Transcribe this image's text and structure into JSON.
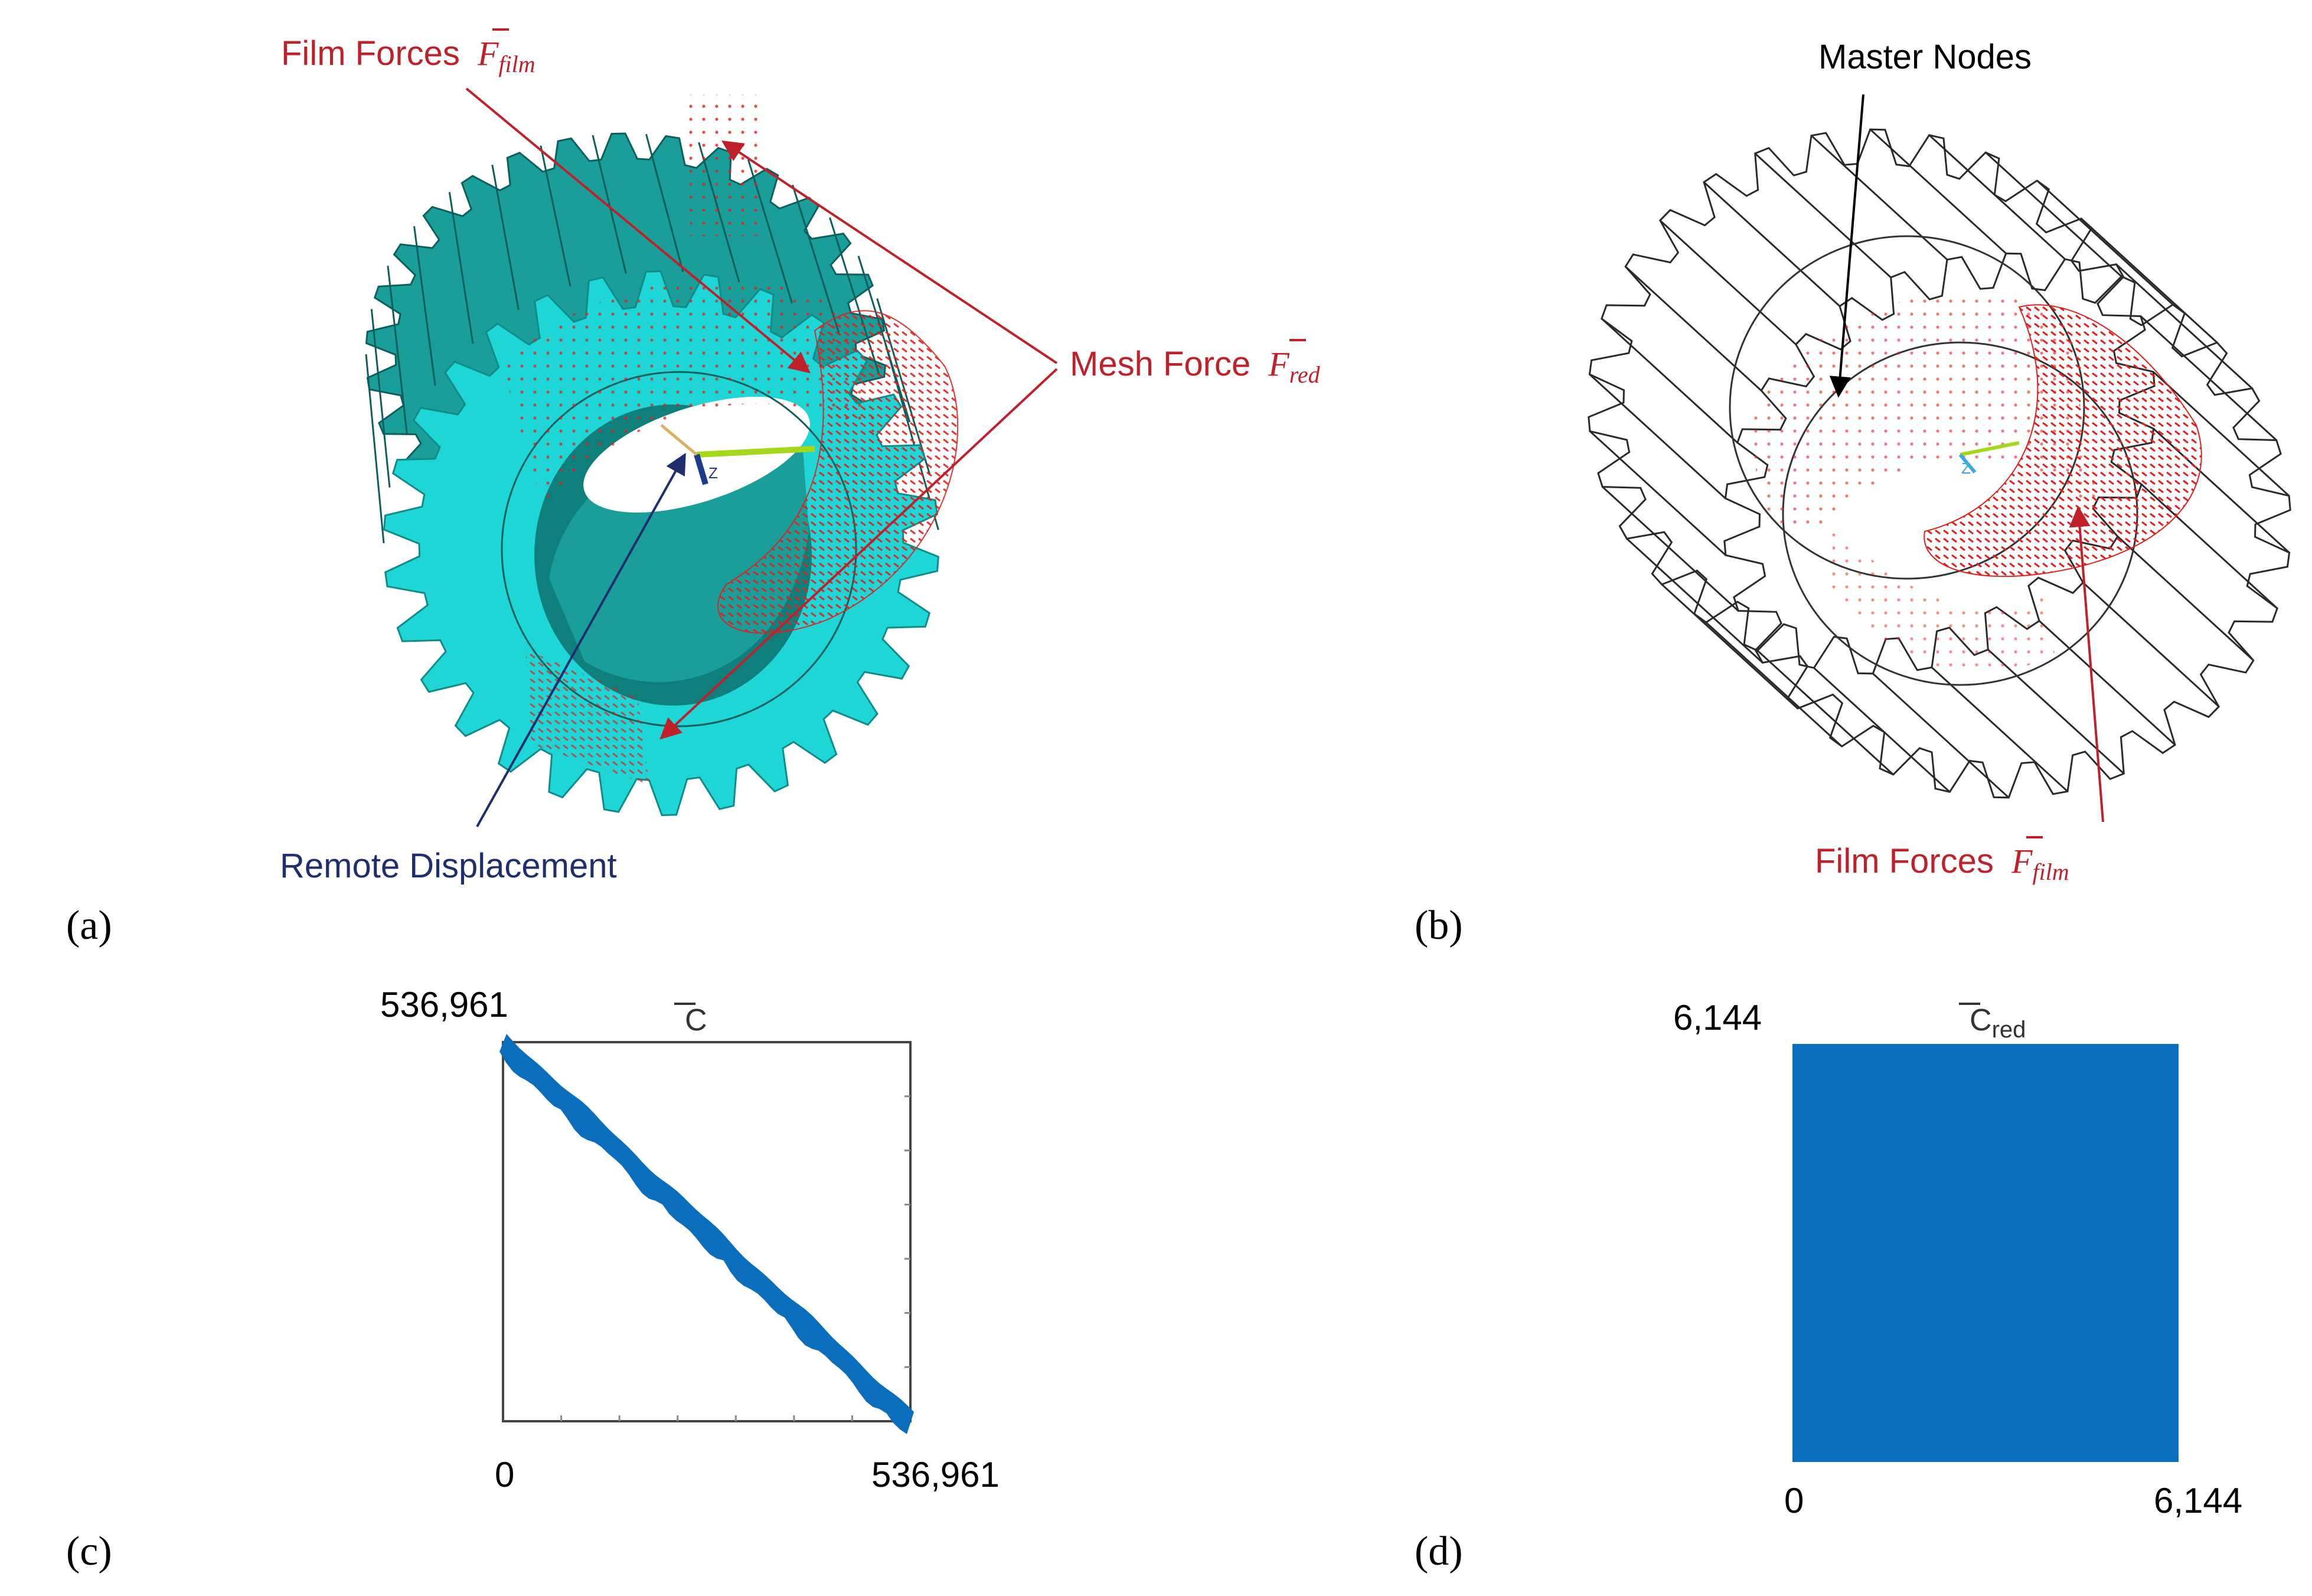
{
  "panels": {
    "a": {
      "caption": "(a)",
      "film_forces_label": "Film Forces",
      "film_forces_symbol": "F",
      "film_forces_sub": "film",
      "mesh_force_label": "Mesh Force",
      "mesh_force_symbol": "F",
      "mesh_force_sub": "red",
      "remote_displacement_label": "Remote Displacement",
      "axis_label": "Z",
      "gear_color": "#1fd6d6",
      "gear_side_color": "#1a9e9a"
    },
    "b": {
      "caption": "(b)",
      "master_nodes_label": "Master Nodes",
      "film_forces_label": "Film Forces",
      "film_forces_symbol": "F",
      "film_forces_sub": "film",
      "axis_label": "Z"
    },
    "c": {
      "caption": "(c)",
      "title": "C",
      "top_left_label": "536,961",
      "x_min_label": "0",
      "x_max_label": "536,961"
    },
    "d": {
      "caption": "(d)",
      "title": "C",
      "title_sub": "red",
      "top_left_label": "6,144",
      "x_min_label": "0",
      "x_max_label": "6,144"
    }
  },
  "colors": {
    "annotation_red": "#c0202a",
    "annotation_blue": "#1f2f6e",
    "matrix_blue": "#0a6ebd",
    "force_red": "#e0201c"
  },
  "chart_data": [
    {
      "type": "heatmap",
      "title": "C",
      "description_kind": "sparsity pattern, banded diagonal",
      "size": [
        536961,
        536961
      ],
      "x_range": [
        0,
        536961
      ],
      "y_range": [
        0,
        536961
      ],
      "x_tick_labels": [
        "0",
        "536,961"
      ],
      "y_tick_labels": [
        "536,961"
      ]
    },
    {
      "type": "heatmap",
      "title": "C red",
      "description_kind": "sparsity pattern, fully dense",
      "size": [
        6144,
        6144
      ],
      "x_range": [
        0,
        6144
      ],
      "y_range": [
        0,
        6144
      ],
      "x_tick_labels": [
        "0",
        "6,144"
      ],
      "y_tick_labels": [
        "6,144"
      ]
    }
  ]
}
